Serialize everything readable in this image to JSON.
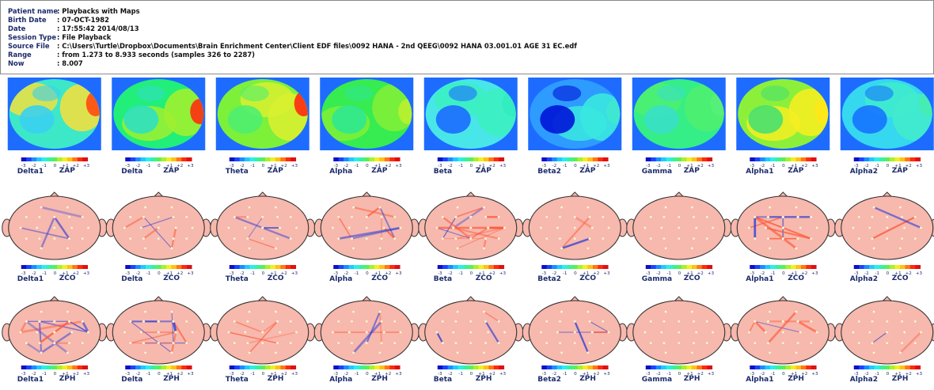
{
  "patient_info": [
    {
      "label": "Patient name",
      "value": ": Playbacks with Maps"
    },
    {
      "label": "Birth Date",
      "value": ": 07-OCT-1982"
    },
    {
      "label": "Date",
      "value": ": 17:55:42 2014/08/13"
    },
    {
      "label": "Session Type",
      "value": ": File Playback"
    },
    {
      "label": "Source File",
      "value": ": C:\\Users\\Turtle\\Dropbox\\Documents\\Brain Enrichment Center\\Client EDF files\\0092 HANA - 2nd QEEG\\0092 HANA 03.001.01 AGE 31  EC.edf"
    },
    {
      "label": "Range",
      "value": ": from 1.273 to 8.933 seconds (samples 326 to 2287)"
    },
    {
      "label": "Now",
      "value": ": 8.007"
    }
  ],
  "scale_ticks": [
    "-3",
    "-2",
    "-1",
    "0",
    "+1",
    "+2",
    "+3"
  ],
  "rows": [
    {
      "metric": "ZAP",
      "kind": "map",
      "bands": [
        "Delta1",
        "Delta",
        "Theta",
        "Alpha",
        "Beta",
        "Beta2",
        "Gamma",
        "Alpha1",
        "Alpha2"
      ],
      "map_colors": [
        {
          "base": "#3de8c8",
          "accent": "#f0e040",
          "hot": "#ff4a10",
          "cool": "#3ad0f0"
        },
        {
          "base": "#22ee7a",
          "accent": "#9ef030",
          "hot": "#ff2e10",
          "cool": "#30e0c0"
        },
        {
          "base": "#7df03a",
          "accent": "#d8f030",
          "hot": "#ff2a10",
          "cool": "#50ee70"
        },
        {
          "base": "#36ec50",
          "accent": "#80f038",
          "hot": "#b8f030",
          "cool": "#30e890"
        },
        {
          "base": "#48e6e8",
          "accent": "#3cf0c0",
          "hot": "#30ecc0",
          "cool": "#1c6cff"
        },
        {
          "base": "#2e9cff",
          "accent": "#3ae8e0",
          "hot": "#40e8d0",
          "cool": "#0015d8"
        },
        {
          "base": "#35ee88",
          "accent": "#4ef070",
          "hot": "#58ee78",
          "cool": "#38e0c8"
        },
        {
          "base": "#8cf03a",
          "accent": "#f4ee22",
          "hot": "#ffe81a",
          "cool": "#48e070"
        },
        {
          "base": "#36d8f0",
          "accent": "#40eccc",
          "hot": "#46ecb0",
          "cool": "#1674ff"
        }
      ]
    },
    {
      "metric": "ZCO",
      "kind": "head",
      "bands": [
        "Delta1",
        "Delta",
        "Theta",
        "Alpha",
        "Beta",
        "Beta2",
        "Gamma",
        "Alpha1",
        "Alpha2"
      ],
      "line_density": [
        5,
        7,
        6,
        9,
        16,
        3,
        0,
        9,
        3
      ]
    },
    {
      "metric": "ZPH",
      "kind": "head",
      "bands": [
        "Delta1",
        "Delta",
        "Theta",
        "Alpha",
        "Beta",
        "Beta2",
        "Gamma",
        "Alpha1",
        "Alpha2"
      ],
      "line_density": [
        12,
        12,
        5,
        4,
        3,
        4,
        0,
        7,
        3
      ]
    }
  ],
  "colors": {
    "map_background": "#1e6cff",
    "head_fill": "#f7b8ad",
    "positive_line": "#ff5a3a",
    "negative_line": "#3040d8",
    "label_text": "#1d2c6b"
  }
}
